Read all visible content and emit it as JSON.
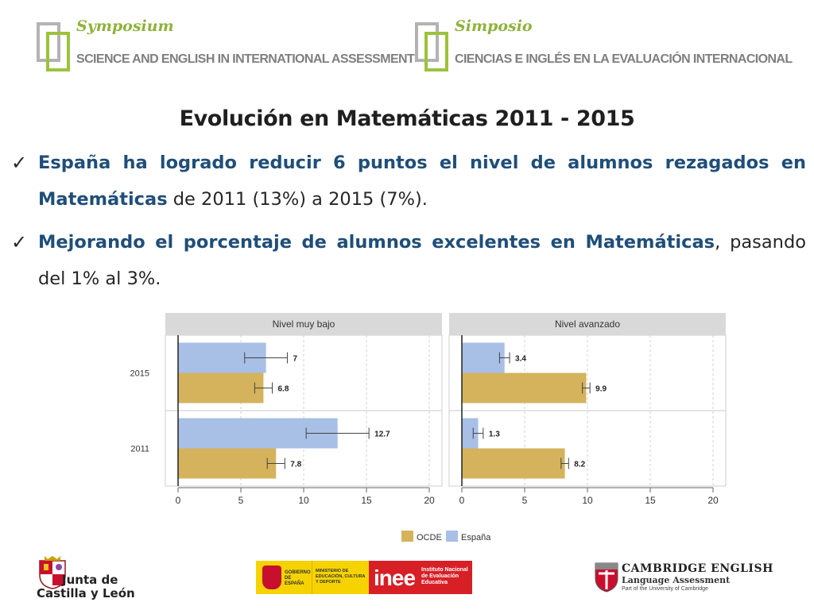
{
  "header": {
    "left": {
      "script": "Symposium",
      "subtitle": "SCIENCE AND ENGLISH IN INTERNATIONAL ASSESSMENT"
    },
    "right": {
      "script": "Simposio",
      "subtitle": "CIENCIAS E INGLÉS EN LA EVALUACIÓN INTERNACIONAL"
    }
  },
  "slide": {
    "title": "Evolución en Matemáticas 2011 - 2015",
    "bullets": [
      {
        "highlight": "España ha logrado reducir 6 puntos el nivel de alumnos rezagados en Matemáticas",
        "rest": " de 2011 (13%) a 2015 (7%)."
      },
      {
        "highlight": "Mejorando el porcentaje de alumnos excelentes en Matemáticas",
        "rest": ", pasando del 1% al 3%."
      }
    ]
  },
  "chart_data": {
    "type": "bar",
    "orientation": "horizontal",
    "categories": [
      "2015",
      "2011"
    ],
    "panels": [
      {
        "title": "Nivel muy bajo",
        "series": [
          {
            "name": "España",
            "values": [
              7,
              12.7
            ],
            "errors": [
              1.7,
              2.5
            ],
            "labels": [
              "7",
              "12.7"
            ]
          },
          {
            "name": "OCDE",
            "values": [
              6.8,
              7.8
            ],
            "errors": [
              0.7,
              0.7
            ],
            "labels": [
              "6.8",
              "7.8"
            ]
          }
        ]
      },
      {
        "title": "Nivel avanzado",
        "series": [
          {
            "name": "España",
            "values": [
              3.4,
              1.3
            ],
            "errors": [
              0.4,
              0.4
            ],
            "labels": [
              "3.4",
              "1.3"
            ]
          },
          {
            "name": "OCDE",
            "values": [
              9.9,
              8.2
            ],
            "errors": [
              0.3,
              0.3
            ],
            "labels": [
              "9.9",
              "8.2"
            ]
          }
        ]
      }
    ],
    "xlim": [
      0,
      20
    ],
    "xticks": [
      0,
      5,
      10,
      15,
      20
    ],
    "legend": {
      "position": "bottom",
      "entries": [
        "OCDE",
        "España"
      ]
    },
    "colors": {
      "España": "#a8bfe6",
      "OCDE": "#d4b35c",
      "panel_header": "#d9d9d9",
      "grid": "#d0d0d0"
    },
    "grid": true
  },
  "footer": {
    "junta": [
      "Junta de",
      "Castilla y León"
    ],
    "ministry": {
      "gobierno": "GOBIERNO DE ESPAÑA",
      "ministerio": "MINISTERIO DE EDUCACIÓN, CULTURA Y DEPORTE",
      "inee_big": "inee",
      "inee_small": "Instituto Nacional de Evaluación Educativa"
    },
    "cambridge": {
      "line1": "CAMBRIDGE ENGLISH",
      "line2": "Language Assessment",
      "line3": "Part of the University of Cambridge"
    }
  }
}
